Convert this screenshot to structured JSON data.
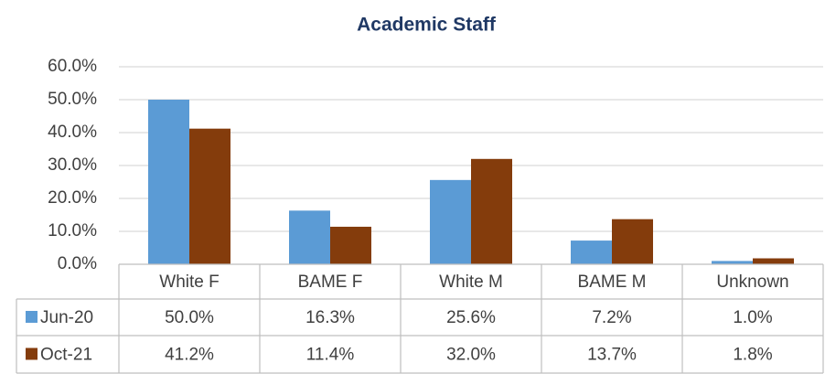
{
  "chart_data": {
    "type": "bar",
    "title": "Academic Staff",
    "categories": [
      "White F",
      "BAME F",
      "White M",
      "BAME M",
      "Unknown"
    ],
    "series": [
      {
        "name": "Jun-20",
        "color": "#5b9bd5",
        "values": [
          50.0,
          16.3,
          25.6,
          7.2,
          1.0
        ],
        "value_labels": [
          "50.0%",
          "16.3%",
          "25.6%",
          "7.2%",
          "1.0%"
        ]
      },
      {
        "name": "Oct-21",
        "color": "#843c0c",
        "values": [
          41.2,
          11.4,
          32.0,
          13.7,
          1.8
        ],
        "value_labels": [
          "41.2%",
          "11.4%",
          "32.0%",
          "13.7%",
          "1.8%"
        ]
      }
    ],
    "ylim": [
      0,
      60
    ],
    "yticks": [
      {
        "value": 0,
        "label": "0.0%"
      },
      {
        "value": 10,
        "label": "10.0%"
      },
      {
        "value": 20,
        "label": "20.0%"
      },
      {
        "value": 30,
        "label": "30.0%"
      },
      {
        "value": 40,
        "label": "40.0%"
      },
      {
        "value": 50,
        "label": "50.0%"
      },
      {
        "value": 60,
        "label": "60.0%"
      }
    ],
    "grid": true
  }
}
